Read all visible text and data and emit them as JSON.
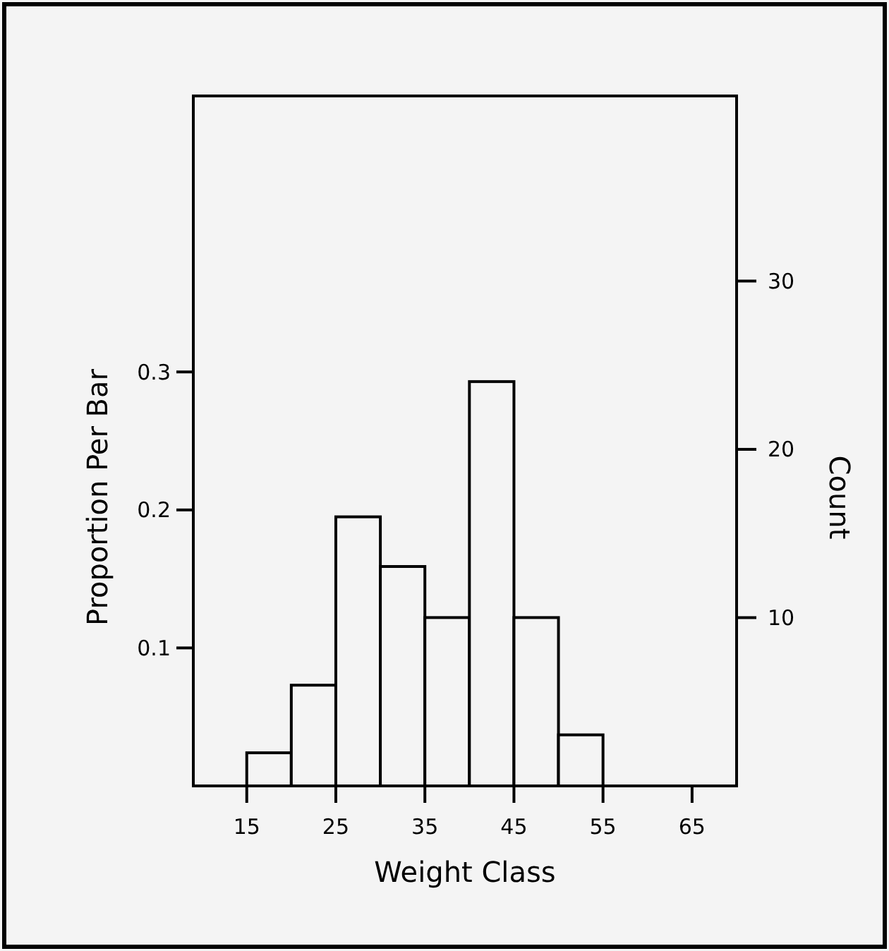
{
  "chart_data": {
    "type": "histogram",
    "xlabel": "Weight Class",
    "ylabel": "Proportion Per Bar",
    "y2label": "Count",
    "bins": [
      15,
      20,
      25,
      30,
      35,
      40,
      45,
      50,
      55
    ],
    "values": [
      0.024,
      0.073,
      0.195,
      0.159,
      0.122,
      0.293,
      0.122,
      0.037
    ],
    "color": "#f4f4f4",
    "xlim": [
      9,
      70
    ],
    "xticks": [
      15,
      25,
      35,
      45,
      55,
      65
    ],
    "ylim": [
      0,
      0.5
    ],
    "yticks": [
      0.1,
      0.2,
      0.3
    ],
    "y2lim": [
      0,
      41
    ],
    "y2ticks": [
      10,
      20,
      30
    ],
    "grid": false
  }
}
